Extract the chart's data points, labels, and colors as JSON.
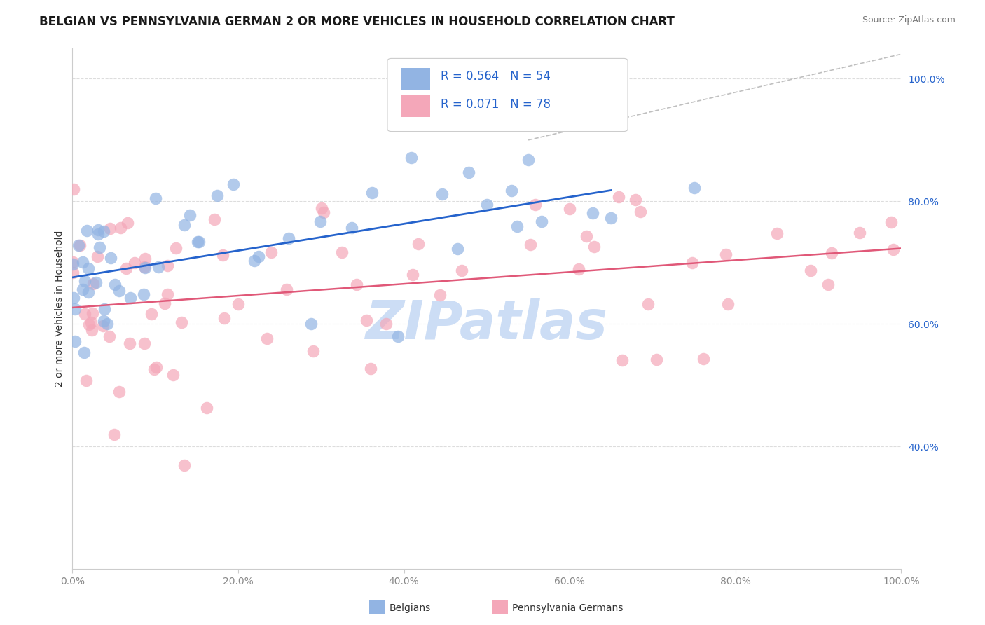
{
  "title": "BELGIAN VS PENNSYLVANIA GERMAN 2 OR MORE VEHICLES IN HOUSEHOLD CORRELATION CHART",
  "source": "Source: ZipAtlas.com",
  "ylabel": "2 or more Vehicles in Household",
  "legend_label_belgian": "Belgians",
  "legend_label_pagerman": "Pennsylvania Germans",
  "r_belgian": 0.564,
  "n_belgian": 54,
  "r_pagerman": 0.071,
  "n_pagerman": 78,
  "xmin": 0.0,
  "xmax": 1.0,
  "ymin": 0.2,
  "ymax": 1.05,
  "belgian_color": "#92b4e3",
  "pagerman_color": "#f4a7b9",
  "belgian_line_color": "#2563cc",
  "pagerman_line_color": "#e05878",
  "diagonal_color": "#b0b0b0",
  "background_color": "#ffffff",
  "watermark_text": "ZIPatlas",
  "watermark_color": "#ccddf5",
  "right_tick_color": "#2563cc",
  "bottom_tick_color": "#888888",
  "grid_color": "#dddddd",
  "title_fontsize": 12,
  "axis_label_fontsize": 10,
  "tick_fontsize": 10,
  "legend_fontsize": 12,
  "yticks": [
    0.4,
    0.6,
    0.8,
    1.0
  ],
  "ytick_labels": [
    "40.0%",
    "60.0%",
    "80.0%",
    "100.0%"
  ],
  "xticks": [
    0.0,
    0.2,
    0.4,
    0.6,
    0.8,
    1.0
  ],
  "xtick_labels": [
    "0.0%",
    "20.0%",
    "40.0%",
    "60.0%",
    "80.0%",
    "100.0%"
  ]
}
